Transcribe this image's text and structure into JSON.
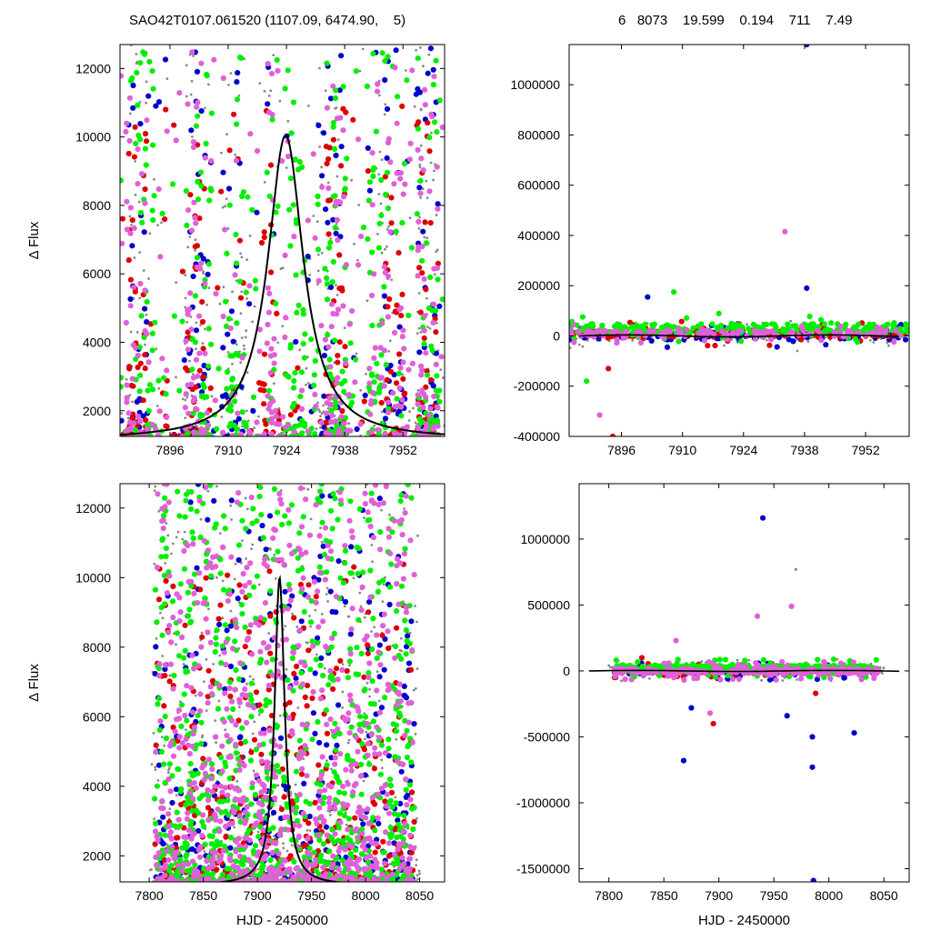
{
  "header": {
    "left": "SAO42T0107.061520 (1107.09, 6474.90,    5)",
    "right": "6   8073    19.599    0.194    711    7.49"
  },
  "colors": {
    "grey": "#888888",
    "blue": "#0000cc",
    "red": "#dd0000",
    "green": "#00ee00",
    "magenta": "#e060d8",
    "model": "#000000"
  },
  "chart_data": [
    {
      "type": "scatter",
      "panel": "top-left",
      "xlabel": "",
      "ylabel": "Δ Flux",
      "xlim": [
        7884,
        7962
      ],
      "ylim": [
        1250,
        12700
      ],
      "xticks": [
        "7896",
        "7910",
        "7924",
        "7938",
        "7952"
      ],
      "yticks": [
        "2000",
        "4000",
        "6000",
        "8000",
        "10000",
        "12000"
      ],
      "model_curve": {
        "shape": "lorentzian",
        "center": 7923.8,
        "baseline": 1150,
        "peak": 10050,
        "width": 5.2
      },
      "series": [
        {
          "color": "grey",
          "point_count": 450,
          "x_range": [
            7884,
            7962
          ],
          "y_range": [
            1250,
            12700
          ],
          "clusters": [
            7888,
            7902,
            7912,
            7934,
            7948,
            7958
          ]
        },
        {
          "color": "blue",
          "point_count": 220,
          "x_range": [
            7884,
            7962
          ],
          "y_range": [
            1250,
            12700
          ],
          "clusters": [
            7889,
            7903,
            7911,
            7935,
            7950,
            7958
          ]
        },
        {
          "color": "red",
          "point_count": 260,
          "x_range": [
            7884,
            7962
          ],
          "y_range": [
            1250,
            11000
          ],
          "clusters": [
            7888,
            7902,
            7920,
            7936,
            7950,
            7958
          ]
        },
        {
          "color": "green",
          "point_count": 420,
          "x_range": [
            7884,
            7962
          ],
          "y_range": [
            1250,
            12700
          ],
          "clusters": [
            7890,
            7904,
            7912,
            7926,
            7936,
            7946,
            7958
          ]
        },
        {
          "color": "magenta",
          "point_count": 380,
          "x_range": [
            7884,
            7962
          ],
          "y_range": [
            1250,
            12700
          ],
          "clusters": [
            7888,
            7902,
            7922,
            7936,
            7950,
            7958
          ]
        }
      ]
    },
    {
      "type": "scatter",
      "panel": "top-right",
      "xlabel": "",
      "ylabel": "",
      "xlim": [
        7884,
        7962
      ],
      "ylim": [
        -400000,
        1160000
      ],
      "xticks": [
        "7896",
        "7910",
        "7924",
        "7938",
        "7952"
      ],
      "yticks": [
        "-400000",
        "-200000",
        "0",
        "200000",
        "400000",
        "600000",
        "800000",
        "1000000"
      ],
      "outliers": [
        {
          "x": 7938.5,
          "y": 1160000,
          "color": "blue"
        },
        {
          "x": 7933.5,
          "y": 415000,
          "color": "magenta"
        },
        {
          "x": 7938.5,
          "y": 190000,
          "color": "blue"
        },
        {
          "x": 7893,
          "y": -130000,
          "color": "red"
        },
        {
          "x": 7894,
          "y": -400000,
          "color": "red"
        },
        {
          "x": 7888,
          "y": -180000,
          "color": "green"
        },
        {
          "x": 7891,
          "y": -315000,
          "color": "magenta"
        },
        {
          "x": 7908,
          "y": 175000,
          "color": "green"
        },
        {
          "x": 7902,
          "y": 155000,
          "color": "blue"
        }
      ],
      "series": [
        {
          "color": "grey",
          "point_count": 200,
          "x_range": [
            7884,
            7962
          ],
          "y_range": [
            -60000,
            60000
          ]
        },
        {
          "color": "blue",
          "point_count": 120,
          "x_range": [
            7884,
            7962
          ],
          "y_range": [
            -50000,
            50000
          ]
        },
        {
          "color": "red",
          "point_count": 110,
          "x_range": [
            7884,
            7962
          ],
          "y_range": [
            -40000,
            60000
          ]
        },
        {
          "color": "green",
          "point_count": 220,
          "x_range": [
            7884,
            7962
          ],
          "y_range": [
            -30000,
            90000
          ]
        },
        {
          "color": "magenta",
          "point_count": 130,
          "x_range": [
            7884,
            7962
          ],
          "y_range": [
            -30000,
            50000
          ]
        }
      ]
    },
    {
      "type": "scatter",
      "panel": "bottom-left",
      "xlabel": "HJD - 2450000",
      "ylabel": "Δ Flux",
      "xlim": [
        7773,
        8073
      ],
      "ylim": [
        1250,
        12700
      ],
      "xticks": [
        "7800",
        "7850",
        "7900",
        "7950",
        "8000",
        "8050"
      ],
      "yticks": [
        "2000",
        "4000",
        "6000",
        "8000",
        "10000",
        "12000"
      ],
      "model_curve": {
        "shape": "lorentzian",
        "center": 7920.5,
        "baseline": 1150,
        "peak": 10000,
        "width": 5.6
      },
      "series": [
        {
          "color": "grey",
          "point_count": 500,
          "x_range": [
            7800,
            8050
          ],
          "y_range": [
            1250,
            12700
          ]
        },
        {
          "color": "blue",
          "point_count": 330,
          "x_range": [
            7805,
            8045
          ],
          "y_range": [
            1250,
            12700
          ]
        },
        {
          "color": "red",
          "point_count": 340,
          "x_range": [
            7805,
            8045
          ],
          "y_range": [
            1250,
            10500
          ]
        },
        {
          "color": "green",
          "point_count": 900,
          "x_range": [
            7805,
            8045
          ],
          "y_range": [
            1250,
            12700
          ]
        },
        {
          "color": "magenta",
          "point_count": 800,
          "x_range": [
            7805,
            8045
          ],
          "y_range": [
            1250,
            12700
          ]
        }
      ]
    },
    {
      "type": "scatter",
      "panel": "bottom-right",
      "xlabel": "HJD - 2450000",
      "ylabel": "",
      "xlim": [
        7773,
        8073
      ],
      "ylim": [
        -1600000,
        1420000
      ],
      "xticks": [
        "7800",
        "7850",
        "7900",
        "7950",
        "8000",
        "8050"
      ],
      "yticks": [
        "-1500000",
        "-1000000",
        "-500000",
        "0",
        "500000",
        "1000000"
      ],
      "outliers": [
        {
          "x": 7940,
          "y": 1160000,
          "color": "blue"
        },
        {
          "x": 7970,
          "y": 770000,
          "color": "grey"
        },
        {
          "x": 7966,
          "y": 490000,
          "color": "magenta"
        },
        {
          "x": 7935,
          "y": 415000,
          "color": "magenta"
        },
        {
          "x": 7868,
          "y": -680000,
          "color": "blue"
        },
        {
          "x": 7985,
          "y": -500000,
          "color": "blue"
        },
        {
          "x": 7985,
          "y": -730000,
          "color": "blue"
        },
        {
          "x": 7986,
          "y": -1590000,
          "color": "blue"
        },
        {
          "x": 8023,
          "y": -470000,
          "color": "blue"
        },
        {
          "x": 7895,
          "y": -400000,
          "color": "red"
        },
        {
          "x": 7892,
          "y": -320000,
          "color": "magenta"
        },
        {
          "x": 7962,
          "y": -340000,
          "color": "blue"
        },
        {
          "x": 7875,
          "y": -280000,
          "color": "blue"
        },
        {
          "x": 7988,
          "y": -170000,
          "color": "red"
        },
        {
          "x": 7830,
          "y": 100000,
          "color": "red"
        },
        {
          "x": 7861,
          "y": 230000,
          "color": "magenta"
        }
      ],
      "series": [
        {
          "color": "grey",
          "point_count": 260,
          "x_range": [
            7800,
            8050
          ],
          "y_range": [
            -80000,
            90000
          ]
        },
        {
          "color": "blue",
          "point_count": 180,
          "x_range": [
            7805,
            8045
          ],
          "y_range": [
            -70000,
            70000
          ]
        },
        {
          "color": "red",
          "point_count": 150,
          "x_range": [
            7805,
            8045
          ],
          "y_range": [
            -50000,
            60000
          ]
        },
        {
          "color": "green",
          "point_count": 380,
          "x_range": [
            7805,
            8045
          ],
          "y_range": [
            -50000,
            90000
          ]
        },
        {
          "color": "magenta",
          "point_count": 280,
          "x_range": [
            7805,
            8045
          ],
          "y_range": [
            -70000,
            70000
          ]
        }
      ]
    }
  ]
}
